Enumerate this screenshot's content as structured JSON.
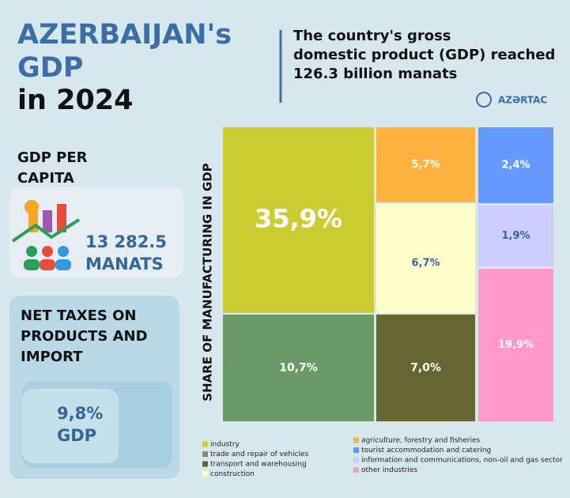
{
  "header": {
    "title_line1": "AZERBAIJAN's",
    "title_line2": "GDP",
    "title_line3": "in 2024",
    "headline": [
      "The country's gross",
      "domestic product (GDP) reached",
      "126.3 billion manats"
    ],
    "logo": "AZƏRTAC"
  },
  "per_capita": {
    "label": [
      "GDP PER",
      "CAPITA"
    ],
    "value": "13 282.5",
    "unit": "MANATS"
  },
  "net_taxes": {
    "label": [
      "NET TAXES ON",
      "PRODUCTS AND",
      "IMPORT"
    ],
    "value": "9,8%",
    "unit": "GDP"
  },
  "chart_data": {
    "type": "treemap",
    "axis_label": "SHARE OF MANUFACTURING IN GDP",
    "categories": [
      "industry",
      "trade and repair of vehicles",
      "transport and warehousing",
      "construction",
      "agriculture, forestry and fisheries",
      "tourist accommodation and catering",
      "information and communications, non-oil and gas sector",
      "other industries"
    ],
    "values": [
      35.9,
      10.7,
      7.0,
      6.7,
      5.7,
      2.4,
      1.9,
      19.9
    ],
    "value_labels": [
      "35,9%",
      "10,7%",
      "7,0%",
      "6,7%",
      "5,7%",
      "2,4%",
      "1,9%",
      "19,9%"
    ],
    "colors": [
      "#cccc33",
      "#6a9a6a",
      "#666633",
      "#ffffcc",
      "#ffb23f",
      "#6699ff",
      "#ccccff",
      "#ff99cc"
    ]
  }
}
